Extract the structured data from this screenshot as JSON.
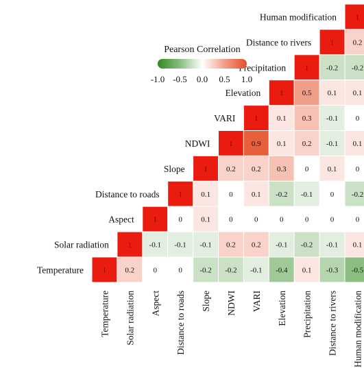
{
  "chart_data": {
    "type": "heatmap",
    "legend": {
      "title": "Pearson Correlation",
      "ticks": [
        "-1.0",
        "-0.5",
        "0.0",
        "0.5",
        "1.0"
      ],
      "range": [
        -1,
        1
      ],
      "colors": [
        "#2f8a1e",
        "#ffffff",
        "#e6502a"
      ]
    },
    "variables": [
      "Temperature",
      "Solar radiation",
      "Aspect",
      "Distance to roads",
      "Slope",
      "NDWI",
      "VARI",
      "Elevation",
      "Precipitation",
      "Distance to rivers",
      "Human modification"
    ],
    "rows_top_to_bottom": [
      "Human modification",
      "Distance to rivers",
      "Precipitation",
      "Elevation",
      "VARI",
      "NDWI",
      "Slope",
      "Distance to roads",
      "Aspect",
      "Solar radiation",
      "Temperature"
    ],
    "values": [
      [
        "1"
      ],
      [
        "1",
        "0.2"
      ],
      [
        "1",
        "-0.2",
        "-0.2"
      ],
      [
        "1",
        "0.5",
        "0.1",
        "0.1"
      ],
      [
        "1",
        "0.1",
        "0.3",
        "-0.1",
        "0"
      ],
      [
        "1",
        "0.9",
        "0.1",
        "0.2",
        "-0.1",
        "0.1"
      ],
      [
        "1",
        "0.2",
        "0.2",
        "0.3",
        "0",
        "0.1",
        "0"
      ],
      [
        "1",
        "0.1",
        "0",
        "0.1",
        "-0.2",
        "-0.1",
        "0",
        "-0.2"
      ],
      [
        "1",
        "0",
        "0.1",
        "0",
        "0",
        "0",
        "0",
        "0",
        "0"
      ],
      [
        "1",
        "-0.1",
        "-0.1",
        "-0.1",
        "0.2",
        "0.2",
        "-0.1",
        "-0.2",
        "-0.1",
        "0.1"
      ],
      [
        "1",
        "0.2",
        "0",
        "0",
        "-0.2",
        "-0.2",
        "-0.1",
        "-0.4",
        "0.1",
        "-0.3",
        "-0.5"
      ]
    ]
  }
}
